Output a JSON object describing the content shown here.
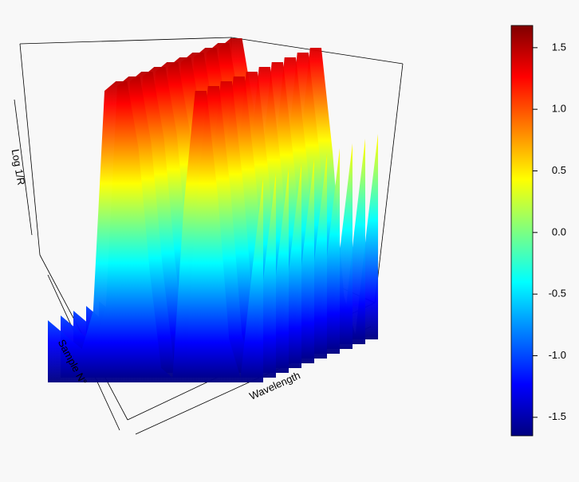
{
  "chart_data": {
    "type": "surface3d",
    "xlabel": "Wavelength",
    "ylabel": "Sample N°",
    "zlabel": "Log 1/R",
    "values": [
      -1.0,
      -1.1,
      -1.2,
      -1.3,
      -0.9,
      1.4,
      1.5,
      1.5,
      0.8,
      -0.5,
      -1.5,
      -1.6,
      0.2,
      1.4,
      1.4,
      0.3,
      -1.2,
      -1.6,
      -0.5,
      0.5
    ],
    "zlim": [
      -1.65,
      1.68
    ],
    "zticks": [
      -1.5,
      {
        "value": -1,
        "label": "-1.0"
      },
      -0.5,
      {
        "value": 0,
        "label": "0.0"
      },
      0.5,
      {
        "value": 1,
        "label": "1.0"
      },
      1.5
    ],
    "colormap": [
      "#00007f",
      "#0000ff",
      "#007fff",
      "#00ffff",
      "#7fff7f",
      "#ffff00",
      "#ff7f00",
      "#ff0000",
      "#7f0000"
    ]
  }
}
